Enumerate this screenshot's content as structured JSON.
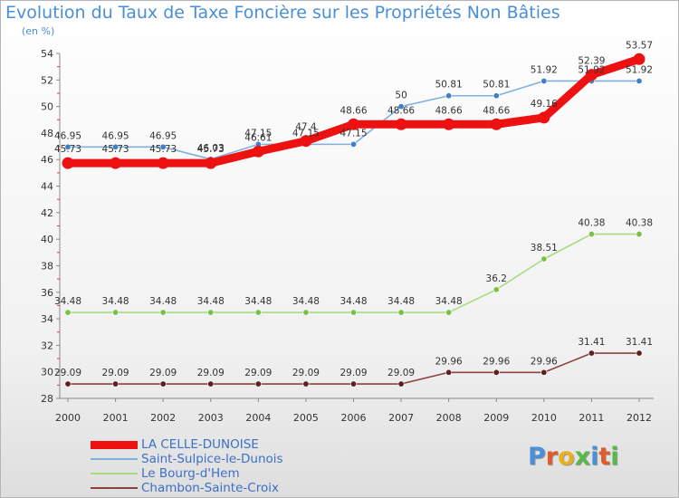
{
  "title": "Evolution du Taux de Taxe Foncière sur les Propriétés Non Bâties",
  "unit_label": "(en %)",
  "brand": {
    "text": "Proxiti",
    "letter_colors": [
      "#4a90d9",
      "#e05a2c",
      "#e8b020",
      "#58b848",
      "#4a90d9",
      "#e05a2c",
      "#58b848"
    ]
  },
  "chart_data": {
    "type": "line",
    "title": "Evolution du Taux de Taxe Foncière sur les Propriétés Non Bâties",
    "ylabel": "(en %)",
    "xlabel": "",
    "categories": [
      "2000",
      "2001",
      "2002",
      "2003",
      "2004",
      "2005",
      "2006",
      "2007",
      "2008",
      "2009",
      "2010",
      "2011",
      "2012"
    ],
    "ylim": [
      28,
      54
    ],
    "yticks": [
      28,
      30,
      32,
      34,
      36,
      38,
      40,
      42,
      44,
      46,
      48,
      50,
      52,
      54
    ],
    "grid": false,
    "legend_position": "bottom-left",
    "series": [
      {
        "name": "Saint-Sulpice-le-Dunois",
        "color": "#7fb0de",
        "marker_color": "#3d80c8",
        "style": "thin",
        "values": [
          46.95,
          46.95,
          46.95,
          46.03,
          47.15,
          47.15,
          47.15,
          50,
          50.81,
          50.81,
          51.92,
          51.92,
          51.92
        ],
        "labels": [
          "46.95",
          "46.95",
          "46.95",
          "46.03",
          "47.15",
          "47.15",
          "47.15",
          "50",
          "50.81",
          "50.81",
          "51.92",
          "51.92",
          "51.92"
        ]
      },
      {
        "name": "Le Bourg-d'Hem",
        "color": "#a8dc80",
        "marker_color": "#7bc045",
        "style": "thin",
        "values": [
          34.48,
          34.48,
          34.48,
          34.48,
          34.48,
          34.48,
          34.48,
          34.48,
          34.48,
          36.2,
          38.51,
          40.38,
          40.38
        ],
        "labels": [
          "34.48",
          "34.48",
          "34.48",
          "34.48",
          "34.48",
          "34.48",
          "34.48",
          "34.48",
          "34.48",
          "36.2",
          "38.51",
          "40.38",
          "40.38"
        ]
      },
      {
        "name": "Chambon-Sainte-Croix",
        "color": "#8a4242",
        "marker_color": "#5e1f1f",
        "style": "thin",
        "values": [
          29.09,
          29.09,
          29.09,
          29.09,
          29.09,
          29.09,
          29.09,
          29.09,
          29.96,
          29.96,
          29.96,
          31.41,
          31.41
        ],
        "labels": [
          "29.09",
          "29.09",
          "29.09",
          "29.09",
          "29.09",
          "29.09",
          "29.09",
          "29.09",
          "29.96",
          "29.96",
          "29.96",
          "31.41",
          "31.41"
        ]
      },
      {
        "name": "LA CELLE-DUNOISE",
        "color": "#ee1111",
        "marker_color": "#ee1111",
        "style": "thick",
        "values": [
          45.73,
          45.73,
          45.73,
          45.73,
          46.61,
          47.4,
          48.66,
          48.66,
          48.66,
          48.66,
          49.16,
          52.39,
          53.57
        ],
        "labels": [
          "45.73",
          "45.73",
          "45.73",
          "45.73",
          "46.61",
          "47.4",
          "48.66",
          "48.66",
          "48.66",
          "48.66",
          "49.16",
          "52.39",
          "53.57"
        ]
      }
    ],
    "legend_order": [
      "LA CELLE-DUNOISE",
      "Saint-Sulpice-le-Dunois",
      "Le Bourg-d'Hem",
      "Chambon-Sainte-Croix"
    ]
  }
}
